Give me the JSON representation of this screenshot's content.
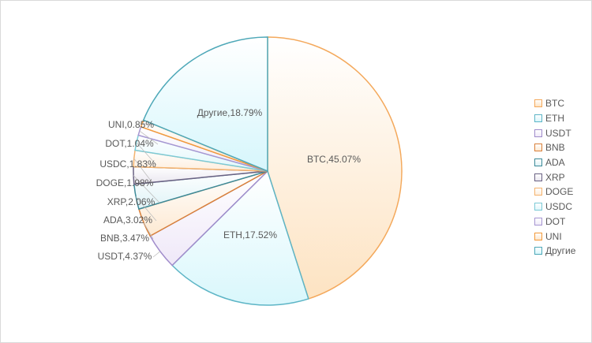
{
  "chart_data": {
    "type": "pie",
    "title": "",
    "categories": [
      "BTC",
      "ETH",
      "USDT",
      "BNB",
      "ADA",
      "XRP",
      "DOGE",
      "USDC",
      "DOT",
      "UNI",
      "Другие"
    ],
    "values": [
      45.07,
      17.52,
      4.37,
      3.47,
      3.02,
      2.06,
      1.98,
      1.83,
      1.04,
      0.85,
      18.79
    ],
    "labels": [
      "BTC,45.07%",
      "ETH,17.52%",
      "USDT,4.37%",
      "BNB,3.47%",
      "ADA,3.02%",
      "XRP,2.06%",
      "DOGE,1.98%",
      "USDC,1.83%",
      "DOT,1.04%",
      "UNI,0.85%",
      "Другие,18.79%"
    ],
    "fill_colors": [
      "#fde3c2",
      "#d9f7fc",
      "#efe8f8",
      "#fde9d2",
      "#dff3f7",
      "#e9e6ef",
      "#fdeedd",
      "#e0f7fb",
      "#efeaf8",
      "#fde6cc",
      "#d6f6fc"
    ],
    "stroke_colors": [
      "#f4a95c",
      "#5db5c6",
      "#a08ccb",
      "#d9803a",
      "#3d8a98",
      "#6a6283",
      "#f4b36e",
      "#7ccad6",
      "#a796d2",
      "#f39a3a",
      "#4ea8b8"
    ],
    "legend_position": "right",
    "start_angle": "top, clockwise"
  }
}
